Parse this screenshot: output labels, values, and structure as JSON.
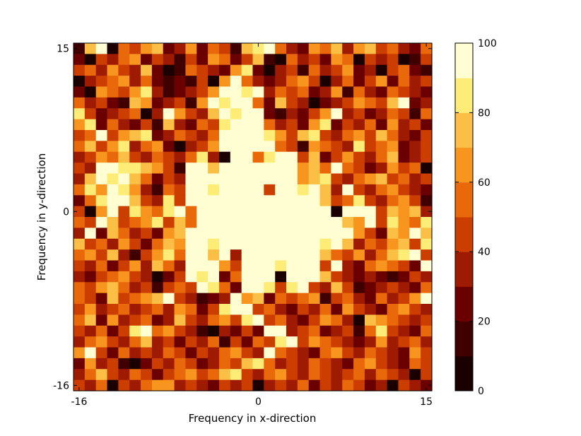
{
  "chart_data": {
    "type": "heatmap",
    "title": "",
    "xlabel": "Frequency in x-direction",
    "ylabel": "Frequency in y-direction",
    "x_range": [
      -16,
      15
    ],
    "y_range": [
      -16,
      15
    ],
    "x_ticks": [
      {
        "value": -16,
        "label": "-16"
      },
      {
        "value": 0,
        "label": "0"
      },
      {
        "value": 15,
        "label": "15"
      }
    ],
    "y_ticks": [
      {
        "value": 15,
        "label": "15"
      },
      {
        "value": 0,
        "label": "0"
      },
      {
        "value": -16,
        "label": "-16"
      }
    ],
    "colorbar": {
      "min": 0,
      "max": 100,
      "levels": 10,
      "ticks": [
        {
          "value": 0,
          "label": "0"
        },
        {
          "value": 20,
          "label": "20"
        },
        {
          "value": 40,
          "label": "40"
        },
        {
          "value": 60,
          "label": "60"
        },
        {
          "value": 80,
          "label": "80"
        },
        {
          "value": 100,
          "label": "100"
        }
      ],
      "colors": [
        "#1a0000",
        "#400000",
        "#6b0000",
        "#9e1a00",
        "#cc3d00",
        "#e8680a",
        "#f7951f",
        "#fbbf45",
        "#fdec75",
        "#fffdd2"
      ]
    },
    "grid": false,
    "legend": "none",
    "rows": [
      "15 75 95 5 55 45 65 75 25 35 65 25 55 45 15 75 85 95 55 35 25 65 55 75 35 65 75 45 55 35 25 55",
      "25 5 45 35 55 65 25 45 35 15 45 25 65 55 25 45 75 15 5 55 35 45 25 65 55 5 45 35 45 5 15 45",
      "45 55 35 65 45 35 75 25 5 15 55 45 35 25 65 85 25 5 35 45 15 55 35 45 65 25 35 5 45 55 25 15",
      "5 35 45 55 65 35 55 25 15 25 15 45 5 65 95 55 35 25 35 55 65 45 5 35 55 25 45 65 25 55 35 45",
      "25 5 65 55 45 65 85 35 15 25 35 45 65 95 95 85 95 35 55 45 55 25 35 65 15 55 35 25 55 45 35 25",
      "55 35 45 25 15 75 65 25 35 45 15 65 95 85 95 95 55 25 75 45 35 5 25 35 45 65 55 45 75 95 25 35",
      "85 45 25 35 45 55 5 35 95 65 45 35 75 95 85 95 95 25 15 35 25 45 65 95 35 45 25 35 55 45 15 55",
      "65 85 25 55 35 25 45 15 75 35 25 55 45 85 95 95 95 55 35 45 25 65 85 25 45 35 55 25 65 35 45 25",
      "45 55 95 45 65 75 85 25 35 55 45 35 55 95 95 95 95 85 65 45 75 85 45 35 55 65 45 75 55 35 25 45",
      "55 75 45 65 85 35 55 65 25 5 35 45 65 95 95 95 95 95 55 45 15 65 55 45 35 85 45 55 65 25 35 45",
      "35 45 65 55 75 45 35 55 45 35 55 85 35 5 95 95 55 85 95 95 45 75 25 45 65 45 35 55 75 25 35 45",
      "45 35 95 95 85 85 75 65 45 15 95 95 75 95 95 95 95 95 95 95 65 75 55 95 55 45 25 35 65 45 55 5",
      "35 75 95 85 95 75 55 25 45 35 95 95 95 95 95 95 95 95 95 95 65 75 85 45 35 55 65 75 45 55 35 45",
      "55 85 65 95 85 65 35 15 55 45 95 95 85 95 95 95 95 45 95 95 85 95 75 35 95 45 35 55 65 45 35 25",
      "25 55 85 95 95 75 45 35 85 45 95 95 95 95 95 95 95 95 95 95 95 95 75 45 55 85 45 35 55 65 45 15",
      "45 5 65 95 45 85 65 55 85 95 55 95 95 95 95 95 95 95 95 95 95 95 95 5 95 95 95 45 75 65 75 35",
      "55 45 95 75 45 55 65 85 45 75 55 95 95 95 95 95 95 95 95 95 95 95 95 95 75 65 95 45 85 65 55 85",
      "35 95 25 75 55 35 45 25 65 75 95 95 95 95 95 95 95 95 95 95 95 95 95 95 95 65 45 25 75 65 95 75",
      "75 45 55 35 65 45 25 55 75 65 95 95 85 95 95 95 95 95 95 95 95 95 85 95 75 35 55 45 65 75 45 85",
      "55 65 45 75 35 15 45 65 85 55 95 95 75 95 35 95 95 95 95 95 95 95 75 55 45 65 35 55 75 85 95 45",
      "45 35 55 25 45 65 35 75 55 35 95 95 95 65 45 95 95 95 85 95 95 95 45 95 35 25 55 65 55 45 25 95",
      "35 25 45 55 65 45 35 5 25 45 95 85 95 25 55 95 95 95 5 95 95 95 75 45 35 25 35 25 15 25 45 35",
      "55 45 65 75 55 35 45 15 45 55 45 95 85 55 25 95 95 85 45 85 95 45 35 75 45 15 25 35 45 35 25 55",
      "55 45 25 75 45 55 65 75 95 45 35 15 25 35 95 65 75 25 55 45 55 65 15 45 55 35 25 55 35 45 65 95",
      "45 65 35 45 55 35 45 55 35 65 55 25 45 85 95 95 45 55 35 25 45 35 55 25 65 45 35 25 55 65 45 35",
      "55 75 25 65 35 45 55 25 35 75 45 35 55 65 45 85 95 45 55 35 25 45 65 55 35 5 75 65 55 45 35 45",
      "45 35 55 25 45 85 95 55 65 45 35 15 5 35 25 45 25 95 95 35 45 55 25 35 45 15 55 85 45 35 25 55",
      "35 55 65 45 35 55 75 35 45 25 45 35 55 15 45 25 55 45 85 95 45 65 55 45 35 25 35 65 35 45 55 35",
      "65 95 45 25 55 35 45 35 55 45 25 45 35 55 65 45 35 95 55 45 35 25 55 65 45 35 55 45 35 25 65 45",
      "25 65 35 45 15 5 25 45 35 55 45 25 35 55 45 75 85 55 35 45 35 55 45 35 25 55 65 45 35 25 55 45",
      "35 55 75 45 35 55 45 25 45 55 65 45 55 75 85 45 35 55 65 45 35 55 45 35 45 55 35 55 45 35 5 45",
      "45 35 55 5 45 35 55 65 65 35 45 35 25 45 35 45 5 35 45 35 55 25 45 35 55 45 25 35 5 45 35 25"
    ]
  }
}
